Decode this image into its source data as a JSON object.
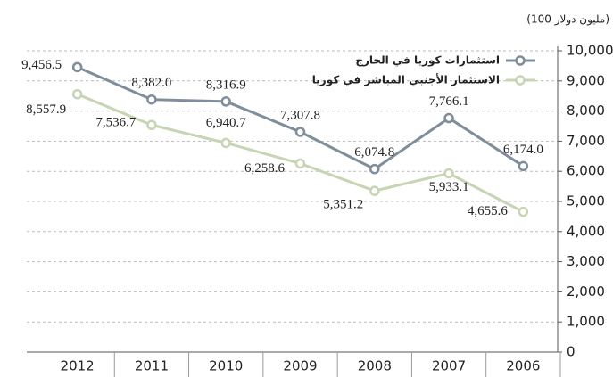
{
  "chart_data": {
    "type": "line",
    "y_axis_label": "(100 مليون دولار)",
    "categories": [
      "2012",
      "2011",
      "2010",
      "2009",
      "2008",
      "2007",
      "2006"
    ],
    "series": [
      {
        "name": "استثمارات كوريا في الخارج",
        "color": "#7f8d9d",
        "values": [
          9456.5,
          8382.0,
          8316.9,
          7307.8,
          6074.8,
          7766.1,
          6174.0
        ],
        "value_labels": [
          "9,456.5",
          "8,382.0",
          "8,316.9",
          "7,307.8",
          "6,074.8",
          "7,766.1",
          "6,174.0"
        ]
      },
      {
        "name": "الاستثمار الأجنبي المباشر في كوريا",
        "color": "#c6d5b3",
        "values": [
          8557.9,
          7536.7,
          6940.7,
          6258.6,
          5351.2,
          5933.1,
          4655.6
        ],
        "value_labels": [
          "8,557.9",
          "7,536.7",
          "6,940.7",
          "6,258.6",
          "5,351.2",
          "5,933.1",
          "4,655.6"
        ]
      }
    ],
    "ylim": [
      0,
      10000
    ],
    "yticks": [
      0,
      {
        "value": 1000,
        "label": "1,000"
      },
      {
        "value": 2000,
        "label": "2,000"
      },
      {
        "value": 3000,
        "label": "3,000"
      },
      {
        "value": 4000,
        "label": "4,000"
      },
      {
        "value": 5000,
        "label": "5,000"
      },
      {
        "value": 6000,
        "label": "6,000"
      },
      {
        "value": 7000,
        "label": "7,000"
      },
      {
        "value": 8000,
        "label": "8,000"
      },
      {
        "value": 9000,
        "label": "9,000"
      },
      {
        "value": 10000,
        "label": "10,000"
      }
    ],
    "grid": true
  }
}
